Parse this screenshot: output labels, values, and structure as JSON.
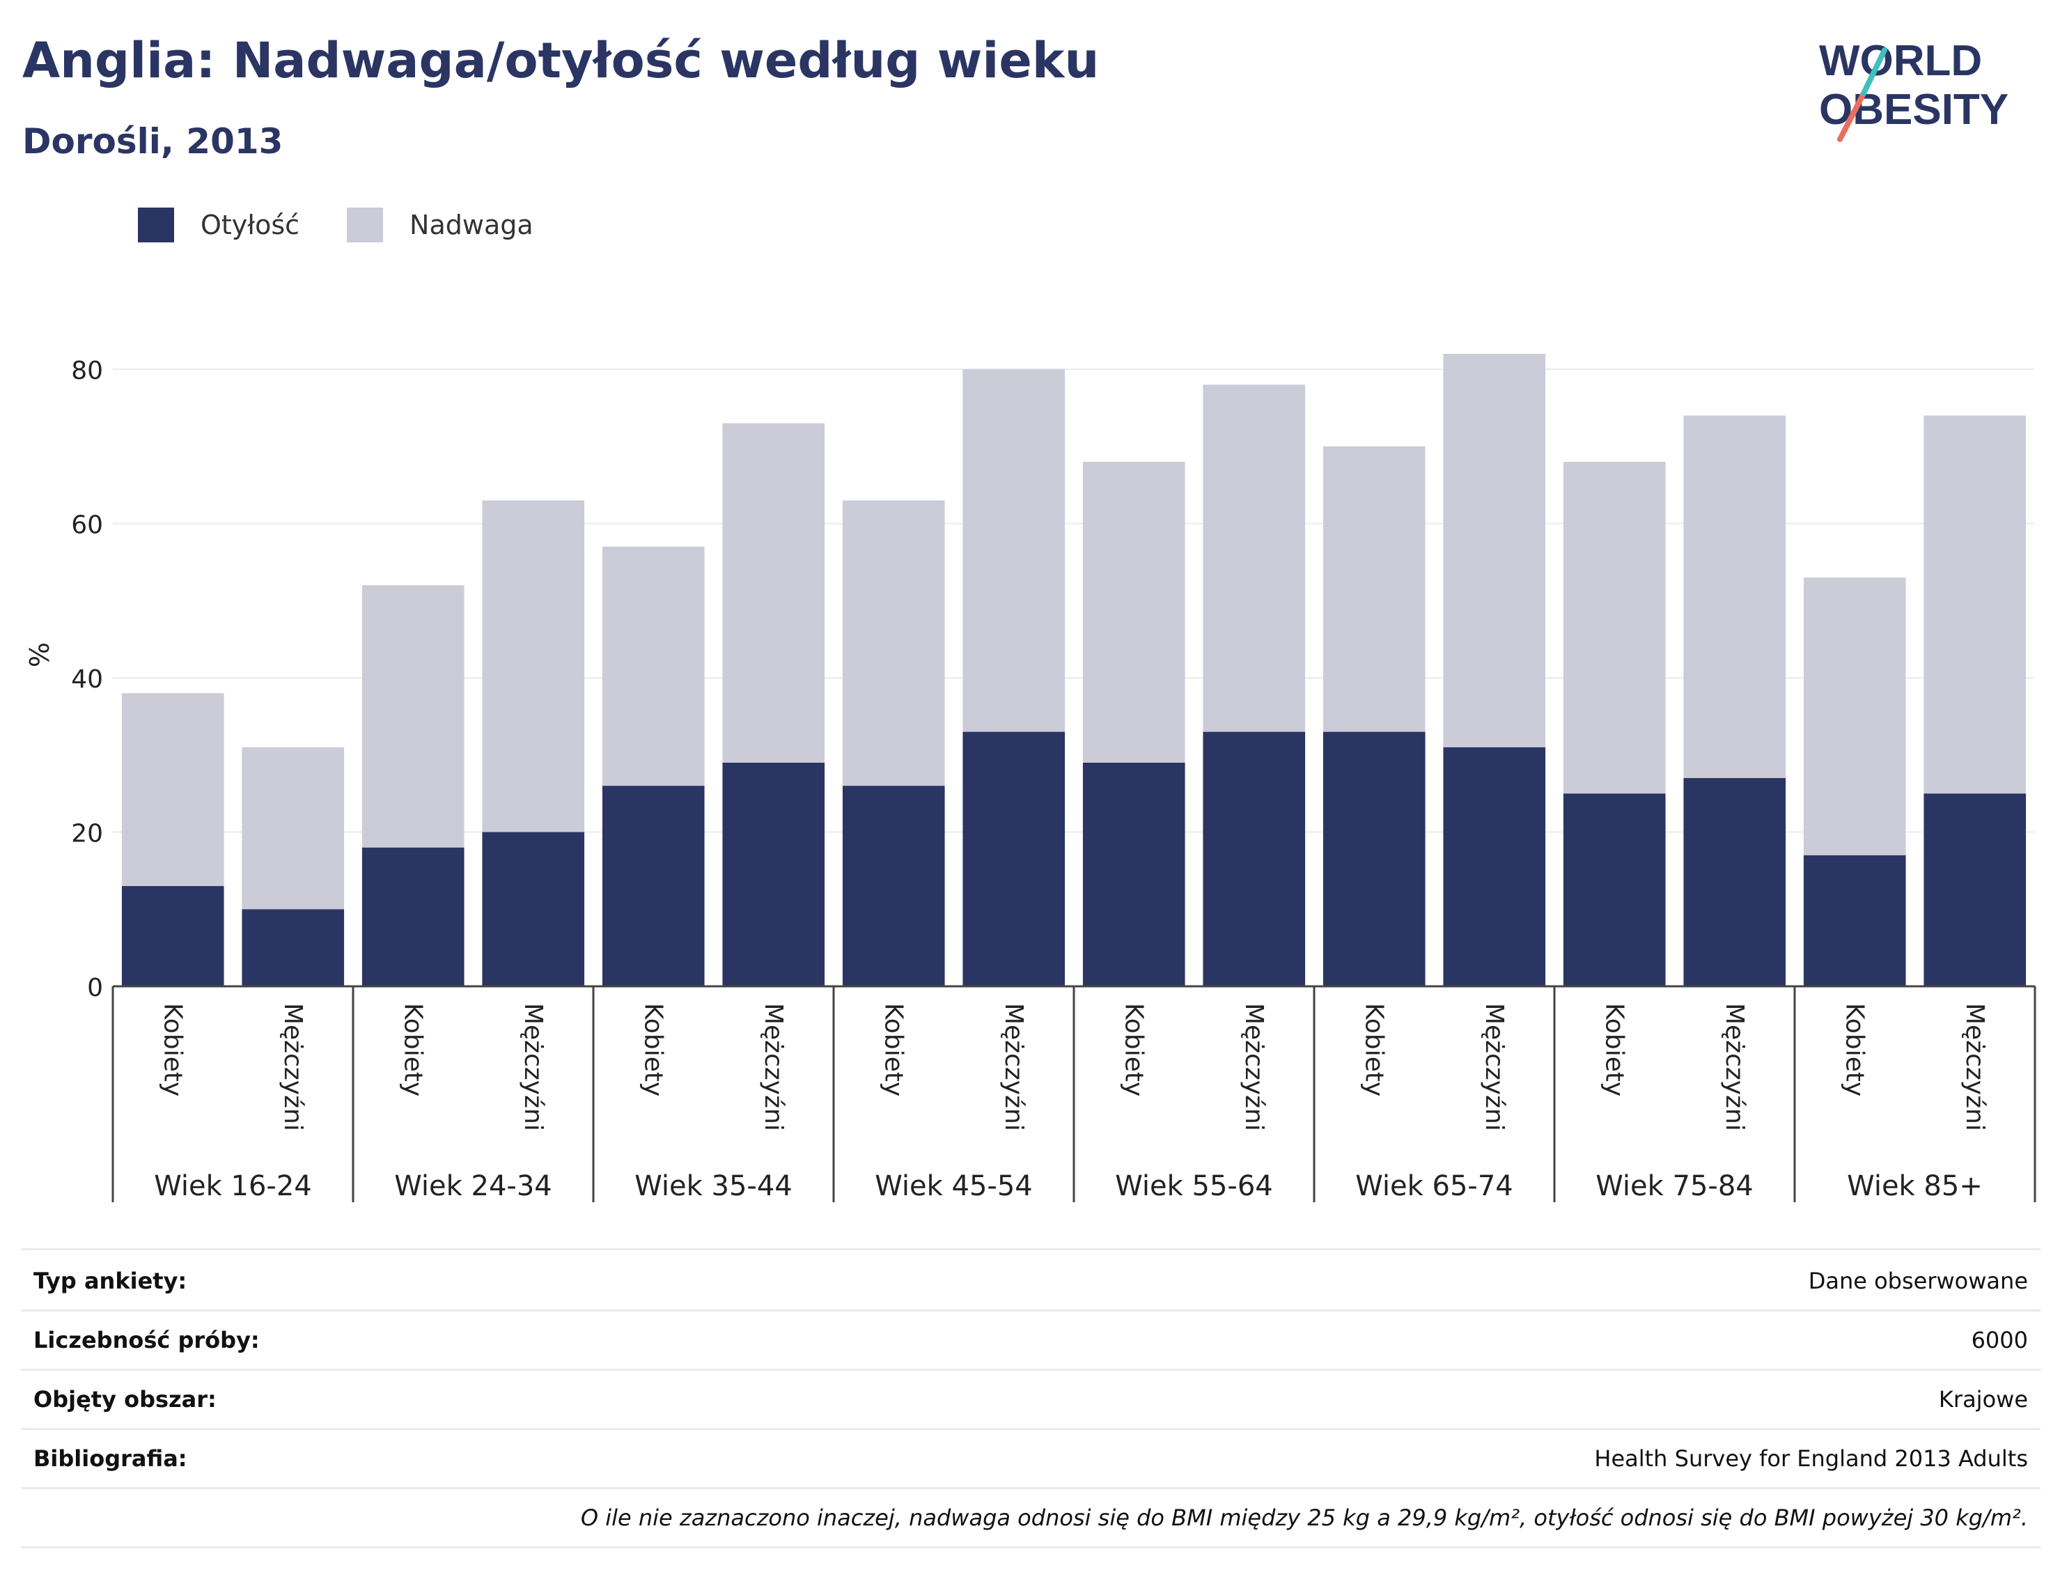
{
  "header": {
    "title": "Anglia: Nadwaga/otyłość według wieku",
    "subtitle": "Dorośli, 2013"
  },
  "logo": {
    "line1": "WORLD",
    "line2": "OBESITY"
  },
  "legend": [
    {
      "label": "Otyłość",
      "color": "#2a3563"
    },
    {
      "label": "Nadwaga",
      "color": "#cbccd8"
    }
  ],
  "chart_data": {
    "type": "bar",
    "stacked": true,
    "ylabel": "%",
    "ylim": [
      0,
      82
    ],
    "yticks": [
      0,
      20,
      40,
      60,
      80
    ],
    "grid": true,
    "groups": [
      "Wiek 16-24",
      "Wiek 24-34",
      "Wiek 35-44",
      "Wiek 45-54",
      "Wiek 55-64",
      "Wiek 65-74",
      "Wiek 75-84",
      "Wiek 85+"
    ],
    "sexes": [
      "Kobiety",
      "Mężczyźni"
    ],
    "categories": [
      "Wiek 16-24 Kobiety",
      "Wiek 16-24 Mężczyźni",
      "Wiek 24-34 Kobiety",
      "Wiek 24-34 Mężczyźni",
      "Wiek 35-44 Kobiety",
      "Wiek 35-44 Mężczyźni",
      "Wiek 45-54 Kobiety",
      "Wiek 45-54 Mężczyźni",
      "Wiek 55-64 Kobiety",
      "Wiek 55-64 Mężczyźni",
      "Wiek 65-74 Kobiety",
      "Wiek 65-74 Mężczyźni",
      "Wiek 75-84 Kobiety",
      "Wiek 75-84 Mężczyźni",
      "Wiek 85+ Kobiety",
      "Wiek 85+ Mężczyźni"
    ],
    "series": [
      {
        "name": "Otyłość",
        "color": "#2a3563",
        "values": [
          13,
          10,
          18,
          20,
          26,
          29,
          26,
          33,
          29,
          33,
          33,
          31,
          25,
          27,
          17,
          25
        ]
      },
      {
        "name": "Nadwaga",
        "color": "#cbccd8",
        "values": [
          25,
          21,
          34,
          43,
          31,
          44,
          37,
          47,
          39,
          45,
          37,
          51,
          43,
          47,
          36,
          49
        ]
      }
    ]
  },
  "info": [
    {
      "key": "Typ ankiety:",
      "value": "Dane obserwowane"
    },
    {
      "key": "Liczebność próby:",
      "value": "6000"
    },
    {
      "key": "Objęty obszar:",
      "value": "Krajowe"
    },
    {
      "key": "Bibliografia:",
      "value": "Health Survey for England 2013 Adults"
    }
  ],
  "note": "O ile nie zaznaczono inaczej, nadwaga odnosi się do BMI między 25 kg a 29,9 kg/m², otyłość odnosi się do BMI powyżej 30 kg/m²."
}
